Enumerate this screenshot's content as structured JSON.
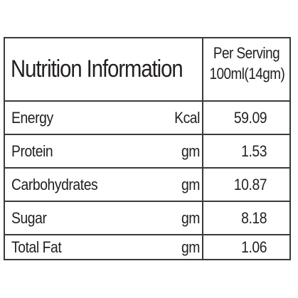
{
  "table": {
    "title": "Nutrition Information",
    "serving_line1": "Per Serving",
    "serving_line2": "100ml(14gm)",
    "rows": [
      {
        "name": "Energy",
        "unit": "Kcal",
        "value": "59.09"
      },
      {
        "name": "Protein",
        "unit": "gm",
        "value": "1.53"
      },
      {
        "name": "Carbohydrates",
        "unit": "gm",
        "value": "10.87"
      },
      {
        "name": "Sugar",
        "unit": "gm",
        "value": "8.18"
      },
      {
        "name": "Total Fat",
        "unit": "gm",
        "value": "1.06"
      }
    ]
  },
  "colors": {
    "border": "#3a3a3a",
    "text": "#231f20",
    "background": "#ffffff"
  }
}
